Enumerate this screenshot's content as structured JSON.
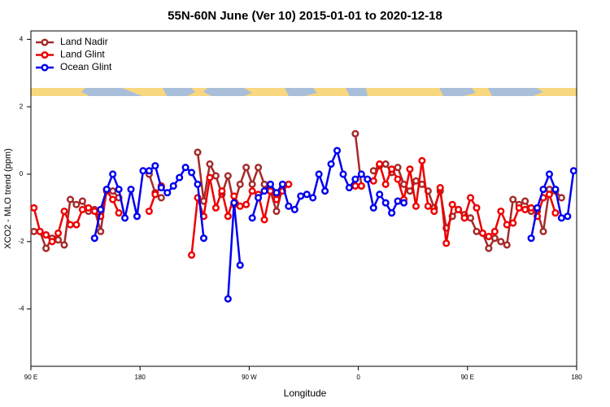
{
  "chart_data": {
    "type": "line",
    "title": "55N-60N June (Ver 10)   2015-01-01 to 2020-12-18",
    "x_label": "Longitude",
    "y_label": "XCO2 - MLO trend (ppm)",
    "xlim": [
      90,
      540
    ],
    "ylim": [
      -5.7,
      4.25
    ],
    "xticks": [
      {
        "value": 90,
        "label": "90 E"
      },
      180,
      {
        "value": 270,
        "label": "90 W"
      },
      {
        "value": 360,
        "label": "0"
      },
      {
        "value": 450,
        "label": "90 E"
      },
      {
        "value": 540,
        "label": "180"
      }
    ],
    "yticks": [
      -4,
      -2,
      0,
      2,
      4
    ],
    "legend": "top-left",
    "x": [
      92.5,
      97.5,
      102.5,
      107.5,
      112.5,
      117.5,
      122.5,
      127.5,
      132.5,
      137.5,
      142.5,
      147.5,
      152.5,
      157.5,
      162.5,
      167.5,
      172.5,
      177.5,
      182.5,
      187.5,
      192.5,
      197.5,
      202.5,
      207.5,
      212.5,
      217.5,
      222.5,
      227.5,
      232.5,
      237.5,
      242.5,
      247.5,
      252.5,
      257.5,
      262.5,
      267.5,
      272.5,
      277.5,
      282.5,
      287.5,
      292.5,
      297.5,
      302.5,
      307.5,
      312.5,
      317.5,
      322.5,
      327.5,
      332.5,
      337.5,
      342.5,
      347.5,
      352.5,
      357.5,
      362.5,
      367.5,
      372.5,
      377.5,
      382.5,
      387.5,
      392.5,
      397.5,
      402.5,
      407.5,
      412.5,
      417.5,
      422.5,
      427.5,
      432.5,
      437.5,
      442.5,
      447.5,
      452.5,
      457.5,
      462.5,
      467.5,
      472.5,
      477.5,
      482.5,
      487.5,
      492.5,
      497.5,
      502.5,
      507.5,
      512.5,
      517.5,
      522.5,
      527.5,
      532.5,
      537.5
    ],
    "series": [
      {
        "name": "Land Nadir",
        "color": "#a52a2a",
        "values": [
          -1.7,
          -1.7,
          -2.2,
          -1.9,
          -1.95,
          -2.1,
          -0.75,
          -0.9,
          -0.8,
          -1.1,
          -1.05,
          -1.7,
          -0.45,
          -0.5,
          -0.7,
          null,
          null,
          null,
          null,
          0.0,
          -0.55,
          -0.7,
          null,
          null,
          null,
          null,
          null,
          0.65,
          -0.8,
          0.3,
          -0.05,
          -0.6,
          -0.05,
          -0.9,
          -0.3,
          0.2,
          -0.3,
          0.2,
          -0.3,
          -0.5,
          -1.1,
          -0.4,
          null,
          null,
          null,
          null,
          null,
          null,
          null,
          null,
          null,
          null,
          null,
          1.2,
          -0.35,
          null,
          0.1,
          0.25,
          0.3,
          0.05,
          0.2,
          -0.3,
          -0.5,
          -0.2,
          -0.3,
          -0.5,
          -1.0,
          -0.5,
          -1.6,
          -1.25,
          -1.05,
          -1.2,
          -1.3,
          -1.7,
          -1.75,
          -2.2,
          -1.9,
          -2.0,
          -2.1,
          -0.75,
          -0.9,
          -0.8,
          -1.1,
          -1.1,
          -1.7,
          -0.45,
          -0.5,
          -0.7,
          null,
          null
        ]
      },
      {
        "name": "Land Glint",
        "color": "#ee0000",
        "values": [
          -1.0,
          -1.7,
          -1.8,
          -2.0,
          -1.75,
          -1.1,
          -1.5,
          -1.5,
          -1.05,
          -1.0,
          -1.1,
          -1.25,
          -0.5,
          -0.75,
          -1.15,
          null,
          null,
          null,
          null,
          -1.1,
          -0.6,
          -0.35,
          null,
          null,
          null,
          null,
          -2.4,
          -0.7,
          -1.25,
          -0.1,
          -1.0,
          -0.5,
          -1.25,
          -0.65,
          -0.95,
          -0.9,
          -0.5,
          -0.6,
          -1.35,
          -0.5,
          -0.75,
          -0.5,
          -0.3,
          null,
          null,
          null,
          null,
          null,
          null,
          null,
          null,
          null,
          null,
          -0.35,
          -0.35,
          null,
          -0.2,
          0.3,
          -0.3,
          0.15,
          -0.15,
          -0.75,
          0.15,
          -0.95,
          0.4,
          -0.95,
          -1.1,
          -0.4,
          -2.05,
          -0.9,
          -1.05,
          -1.3,
          -0.7,
          -1.0,
          -1.75,
          -1.85,
          -1.7,
          -1.1,
          -1.5,
          -1.45,
          -1.0,
          -1.05,
          -1.0,
          -1.25,
          -0.7,
          -0.6,
          -1.15,
          null,
          null,
          null
        ]
      },
      {
        "name": "Ocean Glint",
        "color": "#0000ee",
        "values": [
          null,
          null,
          null,
          null,
          null,
          null,
          null,
          null,
          null,
          null,
          -1.9,
          -1.05,
          -0.45,
          0.0,
          -0.45,
          -1.3,
          -0.45,
          -1.25,
          0.1,
          0.1,
          0.25,
          -0.4,
          -0.55,
          -0.35,
          -0.1,
          0.2,
          0.05,
          -0.3,
          -1.9,
          null,
          null,
          null,
          -3.7,
          -0.85,
          -2.7,
          null,
          -1.3,
          -0.7,
          -0.5,
          -0.3,
          -0.55,
          -0.3,
          -0.95,
          -1.05,
          -0.65,
          -0.6,
          -0.7,
          0.0,
          -0.5,
          0.3,
          0.7,
          0.0,
          -0.4,
          -0.15,
          0.0,
          -0.15,
          -1.0,
          -0.6,
          -0.85,
          -1.15,
          -0.8,
          -0.85,
          null,
          null,
          null,
          null,
          null,
          null,
          null,
          null,
          null,
          null,
          null,
          null,
          null,
          null,
          null,
          null,
          null,
          null,
          null,
          null,
          -1.9,
          -1.0,
          -0.45,
          0.0,
          -0.45,
          -1.3,
          -1.25,
          0.1
        ]
      }
    ]
  }
}
